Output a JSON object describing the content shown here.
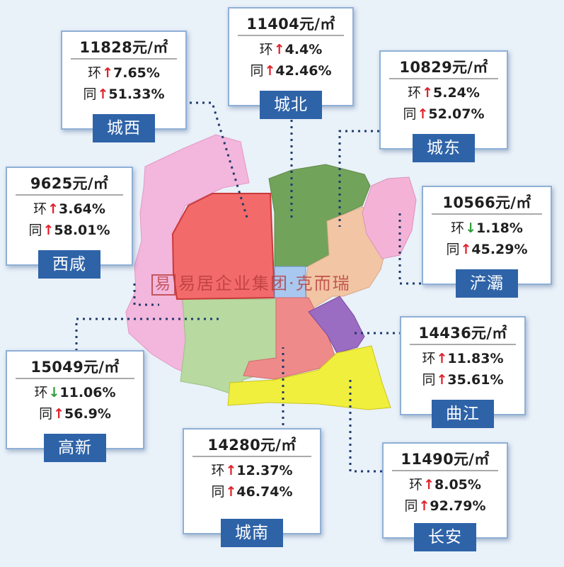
{
  "arrows": {
    "up": "↑",
    "down": "↓"
  },
  "labels": {
    "mom": "环",
    "yoy": "同"
  },
  "watermark": {
    "seal": "易",
    "text": "易居企业集团·克而瑞"
  },
  "colors": {
    "card_border": "#8fb0d6",
    "name_bg": "#2e63a8",
    "up": "#e0202a",
    "down": "#2e9e3a",
    "chengxi": "#f26a6a",
    "chengbei": "#72a35a",
    "chengdong": "#f2c5a4",
    "chanba": "#f4b3d6",
    "qujiang": "#9a6cc2",
    "chengnan": "#ef8a8a",
    "changan": "#f1ef3e",
    "gaoxin": "#b8d9a0",
    "xixian": "#f3b6dc",
    "center": "#a9c8f0"
  },
  "districts": [
    {
      "id": "chengxi",
      "name": "城西",
      "price": "11828元/㎡",
      "mom": {
        "dir": "up",
        "value": "7.65%"
      },
      "yoy": {
        "dir": "up",
        "value": "51.33%"
      }
    },
    {
      "id": "chengbei",
      "name": "城北",
      "price": "11404元/㎡",
      "mom": {
        "dir": "up",
        "value": "4.4%"
      },
      "yoy": {
        "dir": "up",
        "value": "42.46%"
      }
    },
    {
      "id": "chengdong",
      "name": "城东",
      "price": "10829元/㎡",
      "mom": {
        "dir": "up",
        "value": "5.24%"
      },
      "yoy": {
        "dir": "up",
        "value": "52.07%"
      }
    },
    {
      "id": "xixian",
      "name": "西咸",
      "price": "9625元/㎡",
      "mom": {
        "dir": "up",
        "value": "3.64%"
      },
      "yoy": {
        "dir": "up",
        "value": "58.01%"
      }
    },
    {
      "id": "chanba",
      "name": "浐灞",
      "price": "10566元/㎡",
      "mom": {
        "dir": "down",
        "value": "1.18%"
      },
      "yoy": {
        "dir": "up",
        "value": "45.29%"
      }
    },
    {
      "id": "qujiang",
      "name": "曲江",
      "price": "14436元/㎡",
      "mom": {
        "dir": "up",
        "value": "11.83%"
      },
      "yoy": {
        "dir": "up",
        "value": "35.61%"
      }
    },
    {
      "id": "gaoxin",
      "name": "高新",
      "price": "15049元/㎡",
      "mom": {
        "dir": "down",
        "value": "11.06%"
      },
      "yoy": {
        "dir": "up",
        "value": "56.9%"
      }
    },
    {
      "id": "chengnan",
      "name": "城南",
      "price": "14280元/㎡",
      "mom": {
        "dir": "up",
        "value": "12.37%"
      },
      "yoy": {
        "dir": "up",
        "value": "46.74%"
      }
    },
    {
      "id": "changan",
      "name": "长安",
      "price": "11490元/㎡",
      "mom": {
        "dir": "up",
        "value": "8.05%"
      },
      "yoy": {
        "dir": "up",
        "value": "92.79%"
      }
    }
  ]
}
